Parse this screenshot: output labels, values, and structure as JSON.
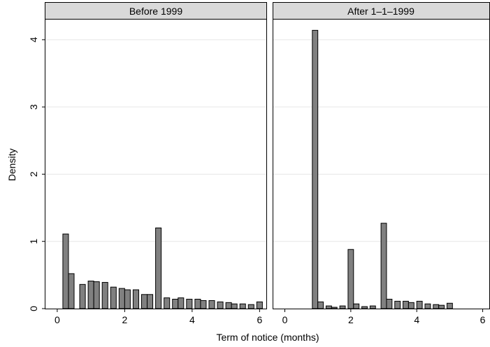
{
  "chart_data": [
    {
      "type": "bar",
      "panel_title": "Before 1999",
      "xlim": [
        -0.35,
        6.2
      ],
      "ylim": [
        0,
        4.3
      ],
      "bin_width": 0.1667,
      "x": [
        0.25,
        0.4167,
        0.75,
        1.0,
        1.1667,
        1.4167,
        1.6667,
        1.9167,
        2.0833,
        2.3333,
        2.5833,
        2.75,
        3.0,
        3.25,
        3.5,
        3.6667,
        3.9167,
        4.1667,
        4.3333,
        4.5833,
        4.8333,
        5.0833,
        5.25,
        5.5,
        5.75,
        6.0
      ],
      "values": [
        1.11,
        0.52,
        0.36,
        0.41,
        0.4,
        0.39,
        0.32,
        0.3,
        0.28,
        0.28,
        0.21,
        0.21,
        1.2,
        0.16,
        0.14,
        0.16,
        0.14,
        0.14,
        0.12,
        0.12,
        0.1,
        0.09,
        0.07,
        0.07,
        0.06,
        0.1
      ],
      "xticks": [
        "0",
        "2",
        "4",
        "6"
      ],
      "yticks": [
        "0",
        "1",
        "2",
        "3",
        "4"
      ]
    },
    {
      "type": "bar",
      "panel_title": "After 1–1–1999",
      "xlim": [
        -0.35,
        6.2
      ],
      "ylim": [
        0,
        4.3
      ],
      "bin_width": 0.1667,
      "x": [
        0.9167,
        1.0833,
        1.3333,
        1.5,
        1.75,
        2.0,
        2.1667,
        2.4167,
        2.6667,
        3.0,
        3.1667,
        3.4167,
        3.6667,
        3.8333,
        4.0833,
        4.3333,
        4.5833,
        4.75,
        5.0
      ],
      "values": [
        4.14,
        0.1,
        0.04,
        0.02,
        0.04,
        0.88,
        0.07,
        0.03,
        0.04,
        1.27,
        0.14,
        0.11,
        0.11,
        0.09,
        0.11,
        0.07,
        0.06,
        0.05,
        0.08
      ],
      "xticks": [
        "0",
        "2",
        "4",
        "6"
      ]
    }
  ],
  "xlabel": "Term of notice (months)",
  "ylabel": "Density"
}
